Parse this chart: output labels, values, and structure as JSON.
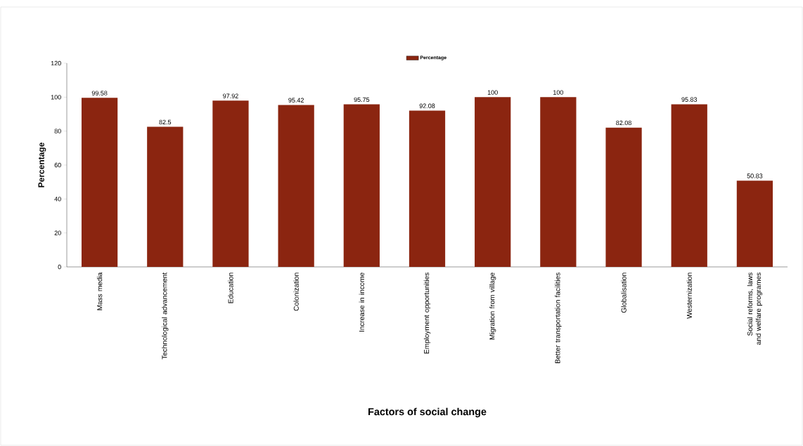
{
  "chart_data": {
    "type": "bar",
    "xlabel": "Factors of social change",
    "ylabel": "Percentage",
    "categories": [
      "Mass media",
      "Technological advancement",
      "Education",
      "Colonization",
      "Increase in income",
      "Employment opportunities",
      "Migration from village",
      "Better transportation facilities",
      "Globalisation",
      "Westernization",
      "Social reforms, laws and welfare programes"
    ],
    "series": [
      {
        "name": "Percentage",
        "color": "#8b2510",
        "values": [
          99.58,
          82.5,
          97.92,
          95.42,
          95.75,
          92.08,
          100,
          100,
          82.08,
          95.83,
          50.83
        ]
      }
    ],
    "ylim": [
      0,
      120
    ],
    "yticks": [
      0,
      20,
      40,
      60,
      80,
      100,
      120
    ],
    "grid": false,
    "legend": "top",
    "data_labels": true
  }
}
